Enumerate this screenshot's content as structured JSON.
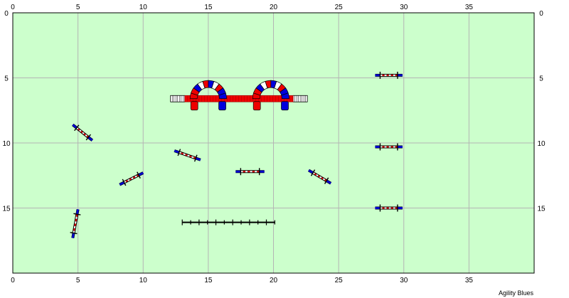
{
  "app": {
    "credit": "Agility Blues"
  },
  "colors": {
    "field": "#ccffcc",
    "grid": "#b4b4b4",
    "border": "#000000",
    "pole_red": "#e00000",
    "pole_blue": "#0000cc",
    "pole_white": "#ffffff",
    "tunnel_red": "#ee0000",
    "tunnel_blue": "#0000dd"
  },
  "ring": {
    "units": "m",
    "x_range": [
      0,
      40
    ],
    "y_range": [
      0,
      20
    ],
    "grid_step": 5,
    "x_ticks": [
      "0",
      "5",
      "10",
      "15",
      "20",
      "25",
      "30",
      "35"
    ],
    "y_ticks": [
      "0",
      "5",
      "10",
      "15"
    ]
  },
  "obstacles": [
    {
      "id": "jump-a",
      "type": "jump",
      "from": [
        4.6,
        8.6
      ],
      "to": [
        6.1,
        9.8
      ]
    },
    {
      "id": "jump-b",
      "type": "jump",
      "from": [
        12.4,
        10.6
      ],
      "to": [
        14.4,
        11.3
      ]
    },
    {
      "id": "jump-c",
      "type": "jump",
      "from": [
        8.2,
        13.2
      ],
      "to": [
        10.0,
        12.3
      ]
    },
    {
      "id": "jump-d",
      "type": "jump",
      "from": [
        17.1,
        12.2
      ],
      "to": [
        19.3,
        12.2
      ]
    },
    {
      "id": "jump-e",
      "type": "jump",
      "from": [
        22.7,
        12.1
      ],
      "to": [
        24.4,
        13.1
      ]
    },
    {
      "id": "jump-f",
      "type": "jump",
      "from": [
        4.6,
        17.3
      ],
      "to": [
        5.0,
        15.1
      ]
    },
    {
      "id": "jump-g",
      "type": "jump",
      "from": [
        27.8,
        4.8
      ],
      "to": [
        29.9,
        4.8
      ]
    },
    {
      "id": "jump-h",
      "type": "jump",
      "from": [
        27.8,
        10.3
      ],
      "to": [
        29.9,
        10.3
      ]
    },
    {
      "id": "jump-i",
      "type": "jump",
      "from": [
        27.8,
        15.0
      ],
      "to": [
        29.9,
        15.0
      ]
    },
    {
      "id": "dogwalk",
      "type": "walk",
      "from": [
        12.1,
        6.6
      ],
      "to": [
        22.6,
        6.6
      ]
    },
    {
      "id": "tunnel-left",
      "type": "tunnel",
      "center": [
        15.0,
        6.6
      ],
      "radius": 1.4
    },
    {
      "id": "tunnel-right",
      "type": "tunnel",
      "center": [
        19.8,
        6.6
      ],
      "radius": 1.4
    },
    {
      "id": "weave-poles",
      "type": "weave",
      "from": [
        13.0,
        16.1
      ],
      "to": [
        20.1,
        16.1
      ],
      "poles": 12
    }
  ]
}
